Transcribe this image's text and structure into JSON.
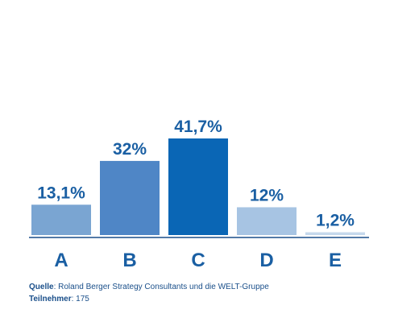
{
  "chart_data": {
    "type": "bar",
    "categories": [
      "A",
      "B",
      "C",
      "D",
      "E"
    ],
    "values": [
      13.1,
      32,
      41.7,
      12,
      1.2
    ],
    "data_labels": [
      "13,1%",
      "32%",
      "41,7%",
      "12%",
      "1,2%"
    ],
    "colors": [
      "#7aa5d2",
      "#4f86c6",
      "#0a66b5",
      "#a7c4e3",
      "#c5d8ec"
    ],
    "axis_color": "#1a4f8a",
    "label_color": "#1a5fa3",
    "ylim": [
      0,
      41.7
    ],
    "grid": false,
    "legend": "none"
  },
  "footer": {
    "source_label": "Quelle",
    "source_text": ": Roland Berger Strategy Consultants und die WELT-Gruppe",
    "participants_label": "Teilnehmer",
    "participants_text": ": 175"
  }
}
